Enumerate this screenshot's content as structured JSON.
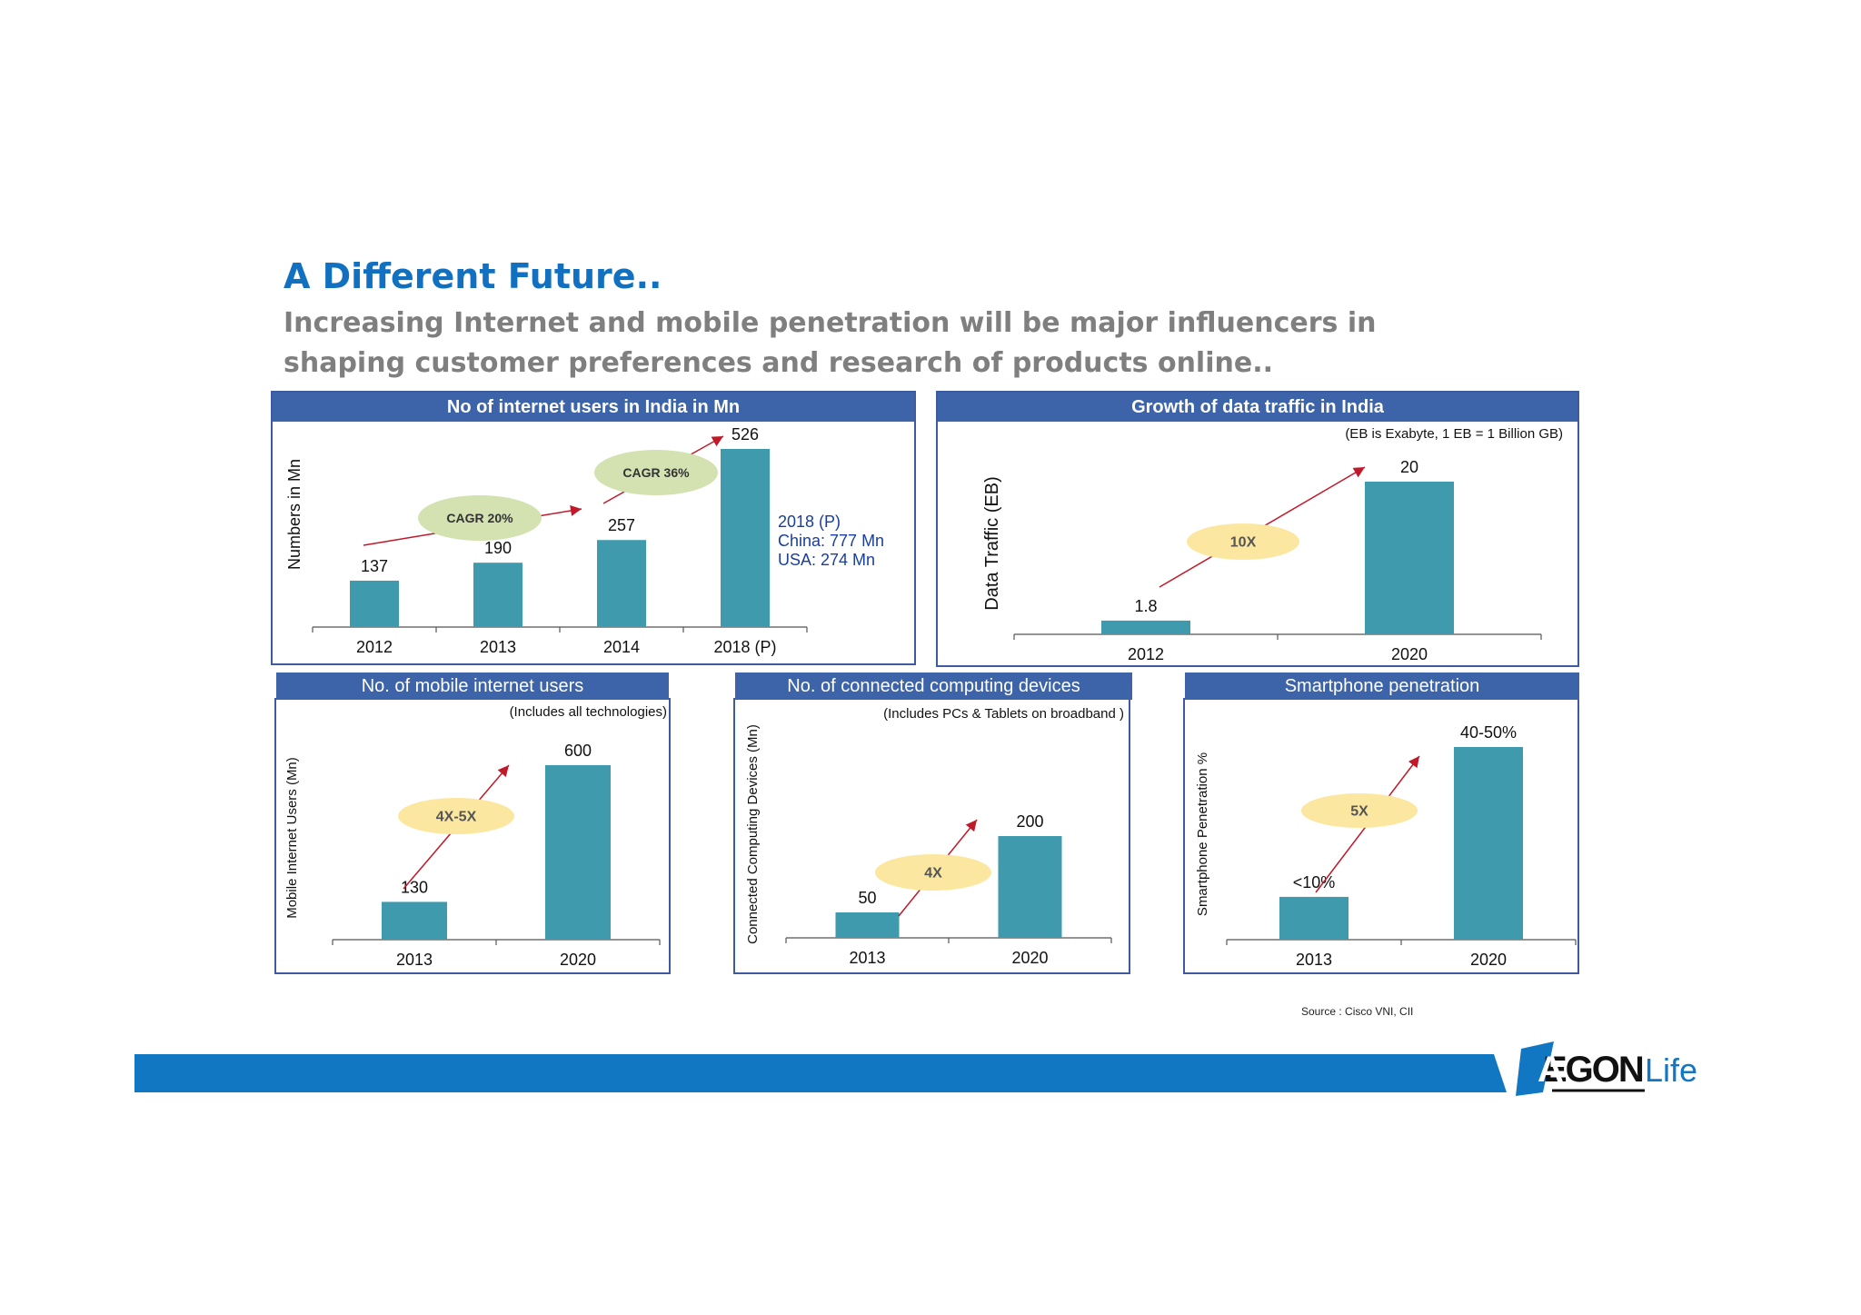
{
  "page": {
    "title": "A Different Future..",
    "subtitle": "Increasing Internet and mobile penetration will be major influencers in shaping customer preferences and research of products online..",
    "source": "Source : Cisco VNI, CII",
    "logo_text": "AEGONLife"
  },
  "chart_data": [
    {
      "type": "bar",
      "title": "No of internet users in India in Mn",
      "ylabel": "Numbers in Mn",
      "categories": [
        "2012",
        "2013",
        "2014",
        "2018 (P)"
      ],
      "values": [
        137,
        190,
        257,
        526
      ],
      "value_labels": [
        "137",
        "190",
        "257",
        "526"
      ],
      "annotations": [
        "CAGR 20%",
        "CAGR 36%"
      ],
      "note_lines": [
        "2018 (P)",
        "China: 777 Mn",
        "USA: 274 Mn"
      ],
      "color": "#3e9aac"
    },
    {
      "type": "bar",
      "title": "Growth of data traffic in India",
      "subtitle": "(EB is Exabyte, 1 EB = 1 Billion GB)",
      "ylabel": "Data Traffic (EB)",
      "categories": [
        "2012",
        "2020"
      ],
      "values": [
        1.8,
        20
      ],
      "value_labels": [
        "1.8",
        "20"
      ],
      "annotations": [
        "10X"
      ],
      "color": "#3e9aac"
    },
    {
      "type": "bar",
      "title": "No. of mobile internet users",
      "subtitle": "(Includes all technologies)",
      "ylabel": "Mobile Internet Users (Mn)",
      "categories": [
        "2013",
        "2020"
      ],
      "values": [
        130,
        600
      ],
      "value_labels": [
        "130",
        "600"
      ],
      "annotations": [
        "4X-5X"
      ],
      "color": "#3e9aac"
    },
    {
      "type": "bar",
      "title": "No. of connected computing devices",
      "subtitle": "(Includes PCs & Tablets on broadband )",
      "ylabel": "Connected Computing Devices (Mn)",
      "categories": [
        "2013",
        "2020"
      ],
      "values": [
        50,
        200
      ],
      "value_labels": [
        "50",
        "200"
      ],
      "annotations": [
        "4X"
      ],
      "color": "#3e9aac"
    },
    {
      "type": "bar",
      "title": "Smartphone penetration",
      "ylabel": "Smartphone Penetration %",
      "categories": [
        "2013",
        "2020"
      ],
      "values": [
        10,
        45
      ],
      "value_labels": [
        "<10%",
        "40-50%"
      ],
      "annotations": [
        "5X"
      ],
      "color": "#3e9aac"
    }
  ],
  "colors": {
    "title": "#1170c0",
    "panel_header": "#3d63a9",
    "bar": "#3e9aac",
    "cagr_ellipse": "#d3e2b0",
    "multiplier_ellipse": "#fbe7a0",
    "arrow": "#c0192a",
    "footer_bar": "#1277c2"
  }
}
